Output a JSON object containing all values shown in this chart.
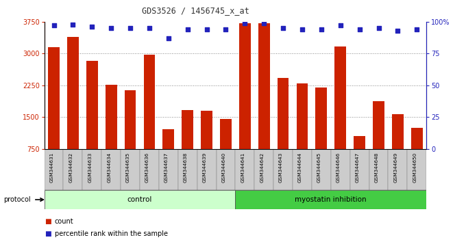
{
  "title": "GDS3526 / 1456745_x_at",
  "samples": [
    "GSM344631",
    "GSM344632",
    "GSM344633",
    "GSM344634",
    "GSM344635",
    "GSM344636",
    "GSM344637",
    "GSM344638",
    "GSM344639",
    "GSM344640",
    "GSM344641",
    "GSM344642",
    "GSM344643",
    "GSM344644",
    "GSM344645",
    "GSM344646",
    "GSM344647",
    "GSM344648",
    "GSM344649",
    "GSM344650"
  ],
  "counts": [
    3150,
    3390,
    2820,
    2270,
    2130,
    2980,
    1220,
    1670,
    1650,
    1460,
    3720,
    3720,
    2420,
    2290,
    2200,
    3160,
    1050,
    1870,
    1570,
    1250
  ],
  "percentiles": [
    97,
    98,
    96,
    95,
    95,
    95,
    87,
    94,
    94,
    94,
    99,
    99,
    95,
    94,
    94,
    97,
    94,
    95,
    93,
    94
  ],
  "control_count": 10,
  "myostatin_count": 10,
  "ylim_left": [
    750,
    3750
  ],
  "ylim_right": [
    0,
    100
  ],
  "yticks_left": [
    750,
    1500,
    2250,
    3000,
    3750
  ],
  "yticks_right": [
    0,
    25,
    50,
    75,
    100
  ],
  "bar_color": "#cc2200",
  "dot_color": "#2222bb",
  "control_label": "control",
  "myostatin_label": "myostatin inhibition",
  "protocol_label": "protocol",
  "legend_count": "count",
  "legend_pct": "percentile rank within the sample",
  "control_bg": "#ccffcc",
  "myostatin_bg": "#44cc44",
  "header_bg": "#cccccc",
  "grid_color": "#888888",
  "title_color": "#333333",
  "left_color": "#cc2200",
  "right_color": "#2222bb",
  "fig_w": 6.8,
  "fig_h": 3.54,
  "dpi": 100
}
